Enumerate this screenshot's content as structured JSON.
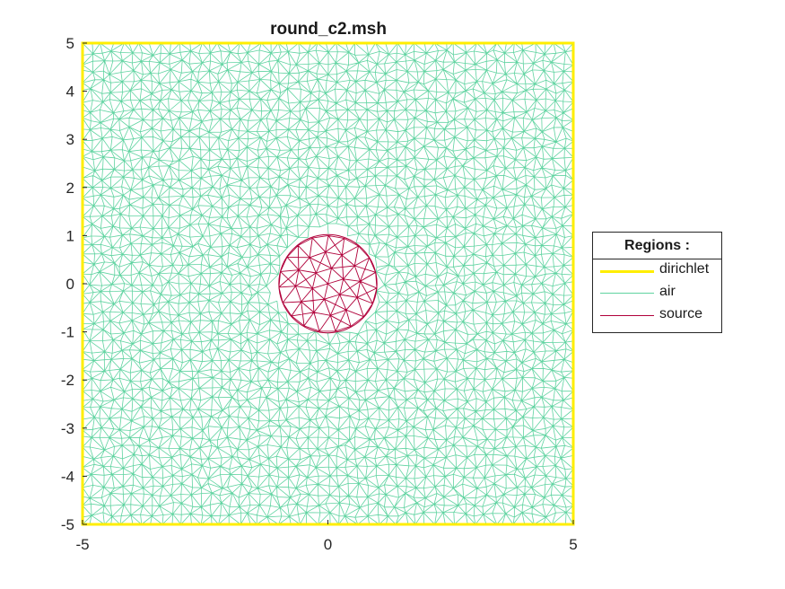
{
  "figure": {
    "title": "round_c2.msh"
  },
  "axes": {
    "x_ticks": [
      {
        "value": -5,
        "label": "-5"
      },
      {
        "value": 0,
        "label": "0"
      },
      {
        "value": 5,
        "label": "5"
      }
    ],
    "y_ticks": [
      {
        "value": 5,
        "label": "5"
      },
      {
        "value": 4,
        "label": "4"
      },
      {
        "value": 3,
        "label": "3"
      },
      {
        "value": 2,
        "label": "2"
      },
      {
        "value": 1,
        "label": "1"
      },
      {
        "value": 0,
        "label": "0"
      },
      {
        "value": -1,
        "label": "-1"
      },
      {
        "value": -2,
        "label": "-2"
      },
      {
        "value": -3,
        "label": "-3"
      },
      {
        "value": -4,
        "label": "-4"
      },
      {
        "value": -5,
        "label": "-5"
      }
    ],
    "xlim": [
      -5,
      5
    ],
    "ylim": [
      -5,
      5
    ]
  },
  "mesh": {
    "domain": {
      "xmin": -5,
      "xmax": 5,
      "ymin": -5,
      "ymax": 5
    },
    "source_center": [
      0,
      0
    ],
    "source_radius": 1
  },
  "legend": {
    "title": "Regions :",
    "entries": [
      {
        "label": "dirichlet",
        "color": "#ffee00"
      },
      {
        "label": "air",
        "color": "#5fd3a0"
      },
      {
        "label": "source",
        "color": "#b0003a"
      }
    ]
  },
  "colors": {
    "dirichlet": "#ffee00",
    "air": "#5fd3a0",
    "source": "#b0003a",
    "axis": "#262626"
  }
}
